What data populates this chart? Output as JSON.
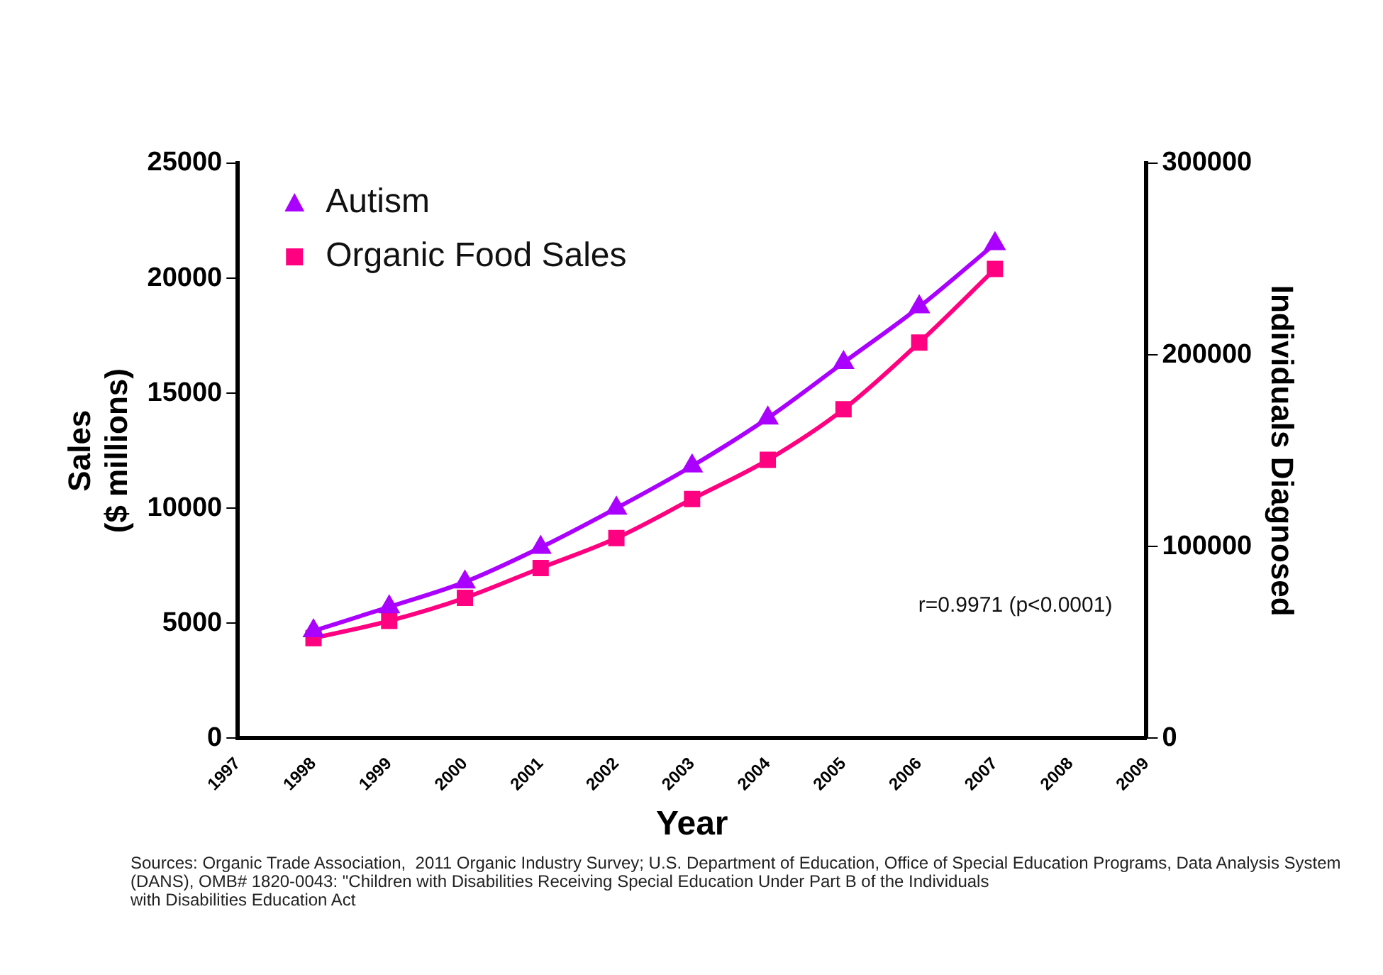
{
  "chart_data": {
    "type": "line",
    "xlabel": "Year",
    "ylabel": "Sales\n($ millions)",
    "y2label": "Individuals Diagnosed",
    "x": [
      1998,
      1999,
      2000,
      2001,
      2002,
      2003,
      2004,
      2005,
      2006,
      2007
    ],
    "series": [
      {
        "name": "Autism",
        "color": "#aa00ff",
        "axis": "y2",
        "marker": "triangle",
        "values": [
          56000,
          68500,
          81500,
          99500,
          120000,
          142000,
          167000,
          196000,
          225000,
          258000
        ]
      },
      {
        "name": "Organic Food Sales",
        "color": "#ff0080",
        "axis": "y",
        "marker": "square",
        "values": [
          4350,
          5100,
          6100,
          7400,
          8700,
          10400,
          12100,
          14300,
          17200,
          20400
        ]
      }
    ],
    "xlim": [
      1997,
      2009
    ],
    "xticks": [
      1997,
      1998,
      1999,
      2000,
      2001,
      2002,
      2003,
      2004,
      2005,
      2006,
      2007,
      2008,
      2009
    ],
    "ylim": [
      0,
      25000
    ],
    "yticks": [
      0,
      5000,
      10000,
      15000,
      20000,
      25000
    ],
    "y2lim": [
      0,
      300000
    ],
    "y2ticks": [
      0,
      100000,
      200000,
      300000
    ],
    "grid": false,
    "legend": "top left",
    "line_style": "solid",
    "annotations": [
      "r=0.9971 (p<0.0001)",
      "Sources: Organic Trade Association,  2011 Organic Industry Survey; U.S. Department of Education, Office of Special Education Programs, Data Analysis System (DANS), OMB# 1820-0043: \"Children with Disabilities Receiving Special Education Under Part B of the Individuals\nwith Disabilities Education Act"
    ]
  }
}
